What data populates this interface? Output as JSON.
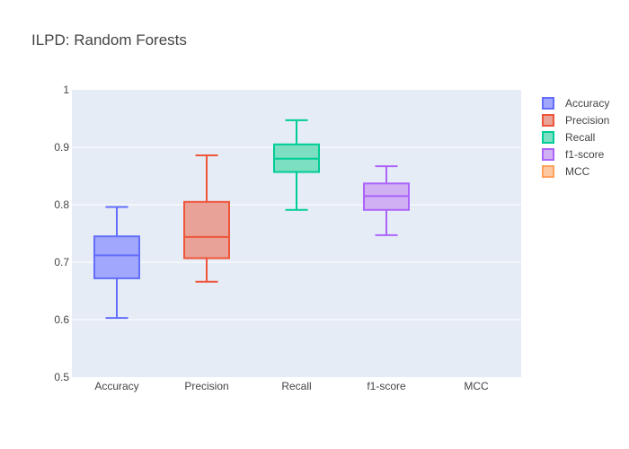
{
  "chart_data": {
    "type": "box",
    "title": "ILPD: Random Forests",
    "categories": [
      "Accuracy",
      "Precision",
      "Recall",
      "f1-score",
      "MCC"
    ],
    "ylim": [
      0.5,
      1.0
    ],
    "yticks": [
      "0.5",
      "0.6",
      "0.7",
      "0.8",
      "0.9",
      "1"
    ],
    "ytick_values": [
      0.5,
      0.6,
      0.7,
      0.8,
      0.9,
      1.0
    ],
    "grid": true,
    "legend_position": "top-right",
    "series": [
      {
        "name": "Accuracy",
        "color": "#636efa",
        "fill": "#a1a7fc",
        "min": 0.603,
        "q1": 0.672,
        "median": 0.712,
        "q3": 0.745,
        "max": 0.796
      },
      {
        "name": "Precision",
        "color": "#ef553b",
        "fill": "#e8a297",
        "min": 0.666,
        "q1": 0.707,
        "median": 0.744,
        "q3": 0.805,
        "max": 0.886
      },
      {
        "name": "Recall",
        "color": "#00cc96",
        "fill": "#7ddfc1",
        "min": 0.791,
        "q1": 0.857,
        "median": 0.88,
        "q3": 0.905,
        "max": 0.947
      },
      {
        "name": "f1-score",
        "color": "#ab63fa",
        "fill": "#d0b0f2",
        "min": 0.747,
        "q1": 0.791,
        "median": 0.815,
        "q3": 0.837,
        "max": 0.867
      },
      {
        "name": "MCC",
        "color": "#ffa15a",
        "fill": "#fbc8a2",
        "min": null,
        "q1": null,
        "median": null,
        "q3": null,
        "max": null
      }
    ]
  }
}
